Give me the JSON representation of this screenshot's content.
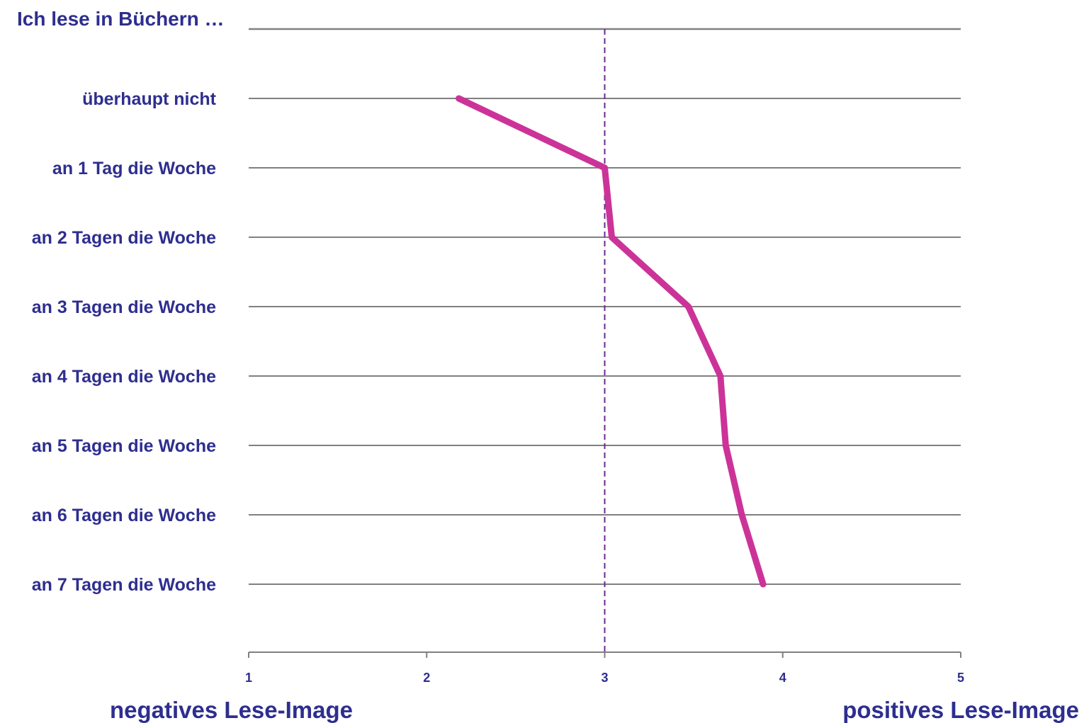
{
  "chart_data": {
    "type": "line",
    "title": "Ich lese in Büchern …",
    "categories": [
      "überhaupt nicht",
      "an 1 Tag die Woche",
      "an 2 Tagen die Woche",
      "an 3 Tagen die Woche",
      "an 4 Tagen die Woche",
      "an 5 Tagen die Woche",
      "an 6 Tagen die Woche",
      "an 7 Tagen die Woche"
    ],
    "series": [
      {
        "values": [
          2.18,
          3.0,
          3.04,
          3.47,
          3.65,
          3.68,
          3.77,
          3.89
        ]
      }
    ],
    "x_ticks": [
      "1",
      "2",
      "3",
      "4",
      "5"
    ],
    "xlim": [
      1,
      5
    ],
    "reference_line": 3,
    "left_label": "negatives Lese-Image",
    "right_label": "positives Lese-Image",
    "colors": {
      "line": "#cc3399",
      "text": "#2e2e8f",
      "grid": "#808080",
      "reference": "#6b2a8f"
    }
  }
}
